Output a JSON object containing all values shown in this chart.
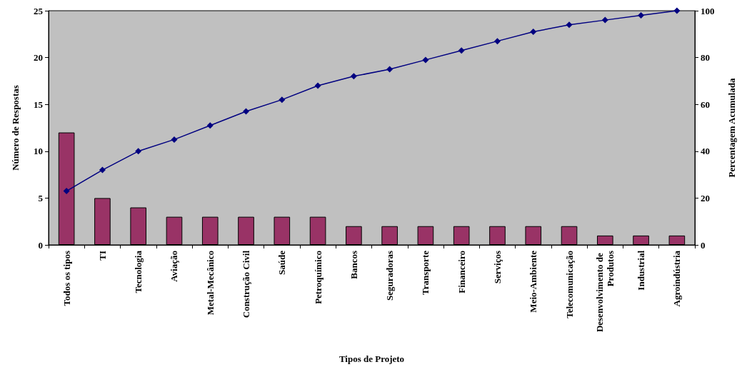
{
  "chart_data": {
    "type": "bar",
    "xlabel": "Tipos de Projeto",
    "ylabel": "Número de Respostas",
    "y2label": "Percentagem Acumulada",
    "categories": [
      "Todos os tipos",
      "TI",
      "Tecnologia",
      "Aviação",
      "Metal-Mecânico",
      "Construção Civil",
      "Saúde",
      "Petroquímico",
      "Bancos",
      "Seguradoras",
      "Transporte",
      "Financeiro",
      "Serviços",
      "Meio-Ambiente",
      "Telecomunicação",
      "Desenvolvimento de Produtos",
      "Industrial",
      "Agroindústria"
    ],
    "series": [
      {
        "color": "#993366",
        "values": [
          12,
          5,
          4,
          3,
          3,
          3,
          3,
          3,
          2,
          2,
          2,
          2,
          2,
          2,
          2,
          1,
          1,
          1
        ]
      },
      {
        "type": "line",
        "axis": "y2",
        "color": "#000080",
        "marker": "diamond",
        "values": [
          23,
          32,
          40,
          45,
          51,
          57,
          62,
          68,
          72,
          75,
          79,
          83,
          87,
          91,
          94,
          96,
          98,
          100
        ]
      }
    ],
    "ylim": [
      0,
      25
    ],
    "yticks": [
      0,
      5,
      10,
      15,
      20,
      25
    ],
    "y2lim": [
      0,
      100
    ],
    "y2ticks": [
      0,
      20,
      40,
      60,
      80,
      100
    ],
    "grid": false
  }
}
